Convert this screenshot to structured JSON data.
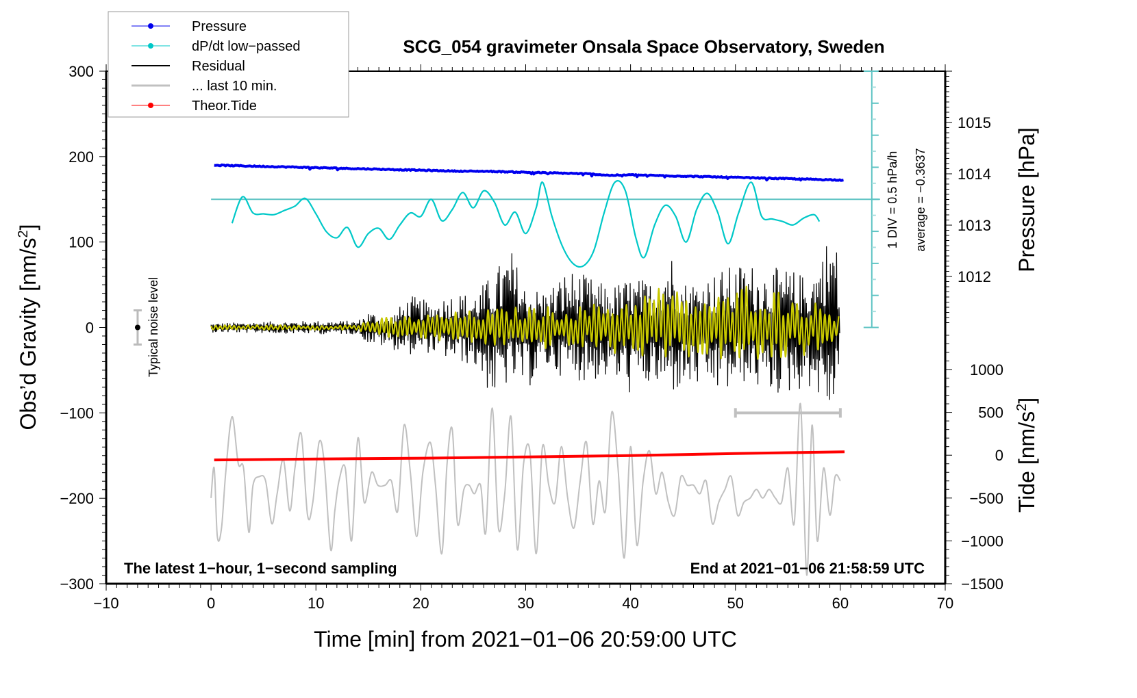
{
  "chart_data": {
    "type": "line",
    "title": "SCG_054 gravimeter Onsala Space Observatory, Sweden",
    "xlabel": "Time [min] from 2021−01−06 20:59:00 UTC",
    "ylabel_left": "Obs’d Gravity [nm/s²]",
    "ylabel_right_top": "Pressure [hPa]",
    "ylabel_right_bottom": "Tide [nm/s²]",
    "xlim": [
      -10,
      70
    ],
    "ylim_left": [
      -300,
      300
    ],
    "ylim_pressure": [
      1011,
      1016
    ],
    "ylim_tide": [
      -1500,
      1500
    ],
    "grid": false,
    "legend_position": "top-left",
    "x_ticks": [
      -10,
      0,
      10,
      20,
      30,
      40,
      50,
      60,
      70
    ],
    "x_tick_labels": [
      "−10",
      "0",
      "10",
      "20",
      "30",
      "40",
      "50",
      "60",
      "70"
    ],
    "y_left_ticks": [
      300,
      200,
      100,
      0,
      -100,
      -200,
      -300
    ],
    "y_left_tick_labels": [
      "300",
      "200",
      "100",
      "0",
      "−100",
      "−200",
      "−300"
    ],
    "y_pressure_ticks": [
      1015,
      1014,
      1013,
      1012
    ],
    "y_pressure_tick_labels": [
      "1015",
      "1014",
      "1013",
      "1012"
    ],
    "y_tide_ticks": [
      1000,
      500,
      0,
      -500,
      -1000,
      -1500
    ],
    "y_tide_tick_labels": [
      "1000",
      "500",
      "0",
      "−500",
      "−1000",
      "−1500"
    ],
    "legend": [
      {
        "label": "Pressure",
        "color": "#0000ee",
        "marker": true
      },
      {
        "label": "dP/dt low−passed",
        "color": "#00c8c8",
        "marker": true
      },
      {
        "label": "Residual",
        "color": "#000000",
        "marker": false
      },
      {
        "label": "... last 10 min.",
        "color": "#c0c0c0",
        "marker": false
      },
      {
        "label": "Theor.Tide",
        "color": "#ff0000",
        "marker": true
      }
    ],
    "annotations": {
      "bottom_left": "The latest 1−hour, 1−second sampling",
      "bottom_right": "End at 2021−01−06 21:58:59 UTC",
      "noise_label": "Typical noise level",
      "dpdt_scale": "1 DIV = 0.5 hPa/h",
      "dpdt_average": "average = −0.3637"
    },
    "noise_bar": {
      "x": -7,
      "center": 0,
      "half_range": 20
    },
    "last10_bar": {
      "x_start": 50,
      "x_end": 60,
      "y": -100
    },
    "series": [
      {
        "name": "Pressure",
        "axis": "pressure",
        "color": "#0000ee",
        "x": [
          0,
          2,
          4,
          6,
          8,
          10,
          12,
          14,
          16,
          18,
          20,
          22,
          24,
          26,
          28,
          30,
          32,
          34,
          36,
          38,
          40,
          42,
          44,
          46,
          48,
          50,
          52,
          54,
          56,
          58,
          60
        ],
        "y": [
          1014.17,
          1014.16,
          1014.15,
          1014.14,
          1014.13,
          1014.12,
          1014.11,
          1014.1,
          1014.09,
          1014.08,
          1014.07,
          1014.06,
          1014.05,
          1014.05,
          1014.04,
          1014.03,
          1014.02,
          1014.01,
          1014.0,
          1013.97,
          1013.98,
          1013.97,
          1013.96,
          1013.95,
          1013.94,
          1013.93,
          1013.92,
          1013.91,
          1013.9,
          1013.89,
          1013.88
        ]
      },
      {
        "name": "dP/dt low-passed",
        "axis": "left_display",
        "color": "#00c8c8",
        "baseline_y": 150,
        "x": [
          2,
          3,
          4,
          5,
          6,
          7,
          8,
          9,
          10,
          11,
          12,
          13,
          14,
          15,
          16,
          17,
          18,
          19,
          20,
          21,
          22,
          23,
          24,
          25,
          26,
          27,
          28,
          29,
          30,
          31,
          31.6,
          32.5,
          33.5,
          34.5,
          35.5,
          36.5,
          37.5,
          38.5,
          39.5,
          40.5,
          41.3,
          42.3,
          43.3,
          44.3,
          45.3,
          46.3,
          47.3,
          48.3,
          49.3,
          50.3,
          51.5,
          52.5,
          53.5,
          54.5,
          55.5,
          56.5,
          57.5,
          58
        ],
        "y": [
          122,
          153,
          134,
          133,
          132,
          137,
          142,
          151,
          133,
          112,
          105,
          117,
          94,
          110,
          116,
          103,
          120,
          134,
          130,
          150,
          125,
          138,
          158,
          140,
          160,
          147,
          120,
          135,
          110,
          140,
          170,
          130,
          95,
          75,
          72,
          90,
          135,
          170,
          160,
          105,
          82,
          120,
          143,
          130,
          100,
          138,
          157,
          135,
          98,
          134,
          170,
          130,
          127,
          124,
          120,
          128,
          132,
          124
        ]
      },
      {
        "name": "Residual",
        "axis": "left",
        "color": "#000000",
        "envelope": {
          "x": [
            0,
            5,
            10,
            14,
            15,
            17,
            19,
            21,
            23,
            25,
            27,
            28.5,
            30,
            32,
            34,
            36,
            38,
            40,
            42,
            43.7,
            45,
            47,
            49,
            51,
            53,
            55,
            57,
            59.5,
            60
          ],
          "max": [
            5,
            7,
            8,
            8,
            20,
            12,
            38,
            30,
            42,
            40,
            65,
            97,
            48,
            45,
            70,
            60,
            48,
            60,
            55,
            97,
            55,
            60,
            70,
            78,
            70,
            70,
            60,
            128,
            15
          ],
          "min": [
            -6,
            -7,
            -8,
            -8,
            -20,
            -25,
            -32,
            -30,
            -40,
            -45,
            -88,
            -65,
            -75,
            -50,
            -60,
            -65,
            -60,
            -80,
            -70,
            -80,
            -75,
            -72,
            -80,
            -65,
            -80,
            -80,
            -70,
            -110,
            -10
          ]
        }
      },
      {
        "name": "Residual (smoothed)",
        "axis": "left",
        "color": "#c8c800",
        "envelope": {
          "x": [
            0,
            14,
            15,
            20,
            25,
            30,
            35,
            40,
            43.7,
            45,
            50,
            51,
            55,
            60
          ],
          "max": [
            3,
            3,
            10,
            15,
            20,
            25,
            25,
            35,
            55,
            35,
            40,
            57,
            40,
            20
          ],
          "min": [
            -3,
            -3,
            -10,
            -15,
            -20,
            -25,
            -25,
            -35,
            -35,
            -35,
            -40,
            -45,
            -40,
            -20
          ]
        }
      },
      {
        "name": "... last 10 min.",
        "axis": "tide",
        "color": "#c0c0c0",
        "x": [
          0,
          0.3,
          0.6,
          1.0,
          1.4,
          2.0,
          2.6,
          3.1,
          3.6,
          4.0,
          4.6,
          5.2,
          5.8,
          6.3,
          6.9,
          7.5,
          8.0,
          8.6,
          9.2,
          9.7,
          10.3,
          10.8,
          11.4,
          11.8,
          12.2,
          12.8,
          13.4,
          14.0,
          14.6,
          15.3,
          15.9,
          16.6,
          17.2,
          17.8,
          18.4,
          19.0,
          19.6,
          20.2,
          20.9,
          21.4,
          22.0,
          22.5,
          23.0,
          23.5,
          24.1,
          24.6,
          25.1,
          25.7,
          26.2,
          26.8,
          27.4,
          28.0,
          28.6,
          29.2,
          29.8,
          30.4,
          31.0,
          31.6,
          32.2,
          32.8,
          33.4,
          34.0,
          34.6,
          35.2,
          35.8,
          36.4,
          37.0,
          37.6,
          38.2,
          38.8,
          39.4,
          40.0,
          40.6,
          41.2,
          41.8,
          42.4,
          43.0,
          43.6,
          44.2,
          44.8,
          45.4,
          46.0,
          46.6,
          47.2,
          47.8,
          48.4,
          49.0,
          49.6,
          50.2,
          50.8,
          51.4,
          52.0,
          52.6,
          53.2,
          53.8,
          54.4,
          55.0,
          55.6,
          56.2,
          56.8,
          57.3,
          57.8,
          58.4,
          59.0,
          59.5,
          60.0
        ],
        "y": [
          -500,
          -150,
          -950,
          -850,
          -200,
          450,
          -100,
          -150,
          -900,
          -350,
          -250,
          -300,
          -800,
          -450,
          -50,
          -650,
          -150,
          250,
          -700,
          -550,
          150,
          -100,
          -1100,
          -650,
          -300,
          -150,
          -1000,
          200,
          -550,
          -200,
          -350,
          -350,
          -300,
          -650,
          350,
          -200,
          -950,
          -200,
          150,
          -350,
          -1150,
          -100,
          300,
          -800,
          -400,
          -350,
          -450,
          -350,
          -900,
          550,
          -850,
          -450,
          450,
          -1100,
          -100,
          50,
          -1150,
          100,
          -350,
          -550,
          100,
          -500,
          -850,
          -300,
          150,
          -800,
          -300,
          -650,
          500,
          -150,
          -1200,
          100,
          -1050,
          -300,
          50,
          -450,
          -200,
          -550,
          -700,
          -250,
          -350,
          -350,
          -450,
          -300,
          -800,
          -550,
          -400,
          -250,
          -700,
          -550,
          -500,
          -400,
          -500,
          -400,
          -500,
          -550,
          -150,
          -800,
          600,
          -1400,
          350,
          -1000,
          -150,
          -700,
          -250,
          -300
        ]
      },
      {
        "name": "Theor.Tide",
        "axis": "tide",
        "color": "#ff0000",
        "x": [
          0.3,
          10,
          20,
          30,
          40,
          50,
          60.4
        ],
        "y": [
          -55,
          -45,
          -35,
          -20,
          -5,
          20,
          40
        ]
      }
    ]
  }
}
